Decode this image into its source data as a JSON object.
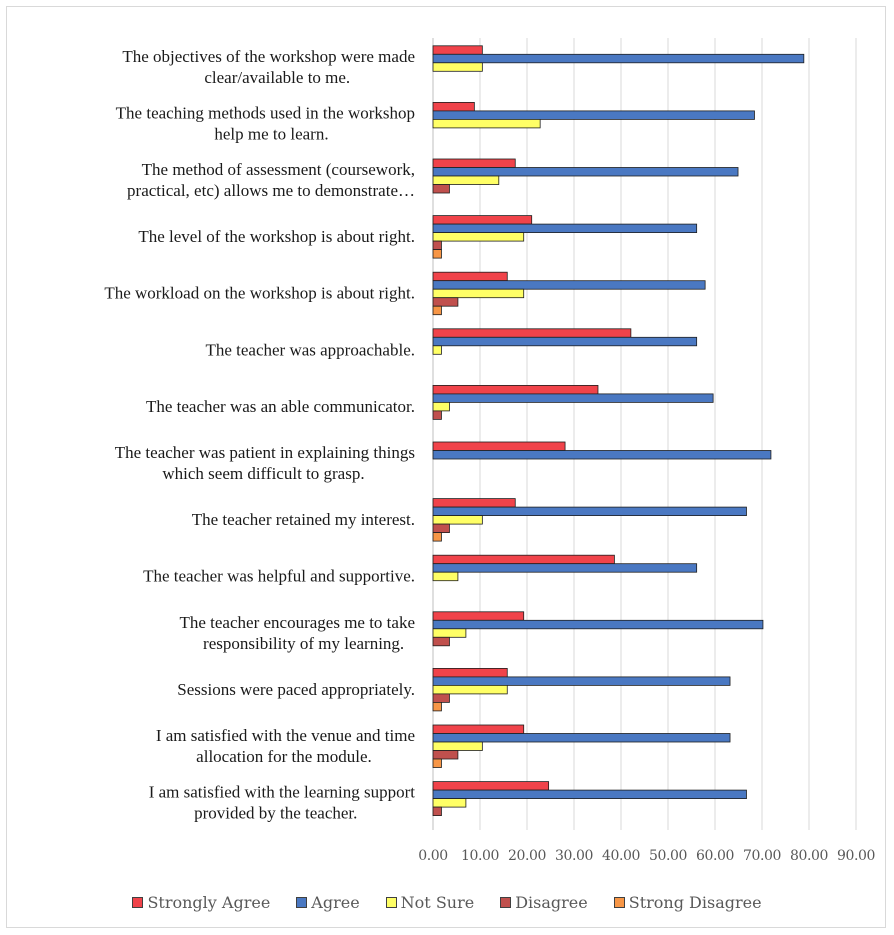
{
  "colors": {
    "strongly_agree": "#F0434A",
    "agree": "#4A78C2",
    "not_sure": "#FFFF66",
    "disagree": "#C0504D",
    "strong_disagree": "#F79646"
  },
  "chart_data": {
    "type": "bar",
    "orientation": "horizontal",
    "title": "",
    "xlabel": "",
    "ylabel": "",
    "xlim": [
      0,
      90
    ],
    "x_ticks": [
      "0.00",
      "10.00",
      "20.00",
      "30.00",
      "40.00",
      "50.00",
      "60.00",
      "70.00",
      "80.00",
      "90.00"
    ],
    "grid": "vertical",
    "legend_position": "bottom",
    "categories": [
      [
        "The objectives of the workshop were made",
        "clear/available to me."
      ],
      [
        "The teaching methods used in the workshop",
        "help me to learn."
      ],
      [
        "The method of assessment (coursework,",
        "practical, etc) allows me to demonstrate…"
      ],
      [
        "The level of the workshop is about right."
      ],
      [
        "The workload on the workshop is about right."
      ],
      [
        "The teacher was approachable."
      ],
      [
        "The teacher was an able communicator."
      ],
      [
        "The teacher was patient in explaining things",
        "which seem difficult to grasp."
      ],
      [
        "The teacher retained my interest."
      ],
      [
        "The teacher was helpful and supportive."
      ],
      [
        "The teacher encourages me to take",
        "responsibility of my learning."
      ],
      [
        "Sessions were paced appropriately."
      ],
      [
        "I am satisfied with the venue and time",
        "allocation for the module."
      ],
      [
        "I am satisfied with the learning support",
        "provided by the teacher."
      ]
    ],
    "series": [
      {
        "name": "Strongly Agree",
        "color": "#F0434A",
        "values": [
          10.5,
          8.8,
          17.5,
          21.0,
          15.8,
          42.1,
          35.1,
          28.1,
          17.5,
          38.6,
          19.3,
          15.8,
          19.3,
          24.6
        ]
      },
      {
        "name": "Agree",
        "color": "#4A78C2",
        "values": [
          78.9,
          68.4,
          64.9,
          56.1,
          57.9,
          56.1,
          59.6,
          71.9,
          66.7,
          56.1,
          70.2,
          63.2,
          63.2,
          66.7
        ]
      },
      {
        "name": "Not Sure",
        "color": "#FFFF66",
        "values": [
          10.5,
          22.8,
          14.0,
          19.3,
          19.3,
          1.8,
          3.5,
          0,
          10.5,
          5.3,
          7.0,
          15.8,
          10.5,
          7.0
        ]
      },
      {
        "name": "Disagree",
        "color": "#C0504D",
        "values": [
          0,
          0,
          3.5,
          1.8,
          5.3,
          0,
          1.8,
          0,
          3.5,
          0,
          3.5,
          3.5,
          5.3,
          1.8
        ]
      },
      {
        "name": "Strong Disagree",
        "color": "#F79646",
        "values": [
          0,
          0,
          0,
          1.8,
          1.8,
          0,
          0,
          0,
          1.8,
          0,
          0,
          1.8,
          1.8,
          0
        ]
      }
    ]
  }
}
